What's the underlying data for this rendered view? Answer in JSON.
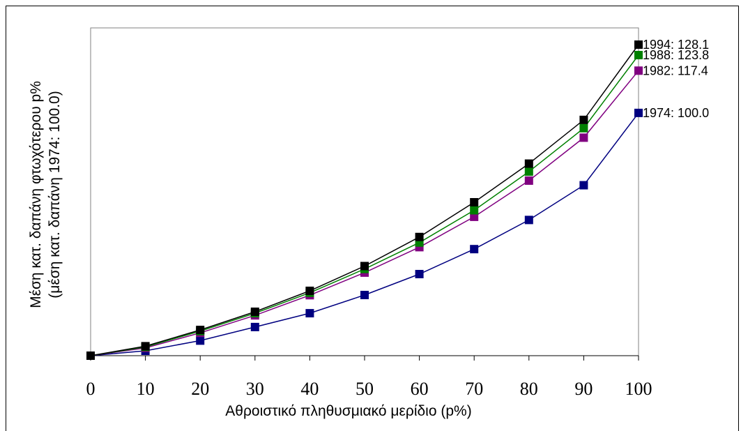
{
  "chart_data": {
    "type": "line",
    "title": "",
    "xlabel": "Αθροιστικό πληθυσμιακό μερίδιο (p%)",
    "ylabel_line1": "Μέση κατ. δαπάνη φτωχότερου p%",
    "ylabel_line2": "(μέση κατ. δαπάνη 1974: 100.0)",
    "x": [
      0,
      10,
      20,
      30,
      40,
      50,
      60,
      70,
      80,
      90,
      100
    ],
    "x_tick_labels": [
      "0",
      "10",
      "20",
      "30",
      "40",
      "50",
      "60",
      "70",
      "80",
      "90",
      "100"
    ],
    "ylim": [
      0,
      135
    ],
    "grid": false,
    "legend": "end-of-line labels",
    "series": [
      {
        "name": "1974",
        "end_label": "1974: 100.0",
        "color": "#000080",
        "values": [
          0,
          2.0,
          6.2,
          11.8,
          17.5,
          25.0,
          33.6,
          43.9,
          55.9,
          70.2,
          100.0
        ]
      },
      {
        "name": "1982",
        "end_label": "1982: 117.4",
        "color": "#800080",
        "values": [
          0,
          3.2,
          9.4,
          16.6,
          24.9,
          34.2,
          44.7,
          57.2,
          72.1,
          89.8,
          117.4
        ]
      },
      {
        "name": "1988",
        "end_label": "1988: 123.8",
        "color": "#008000",
        "values": [
          0,
          3.6,
          10.1,
          17.5,
          25.9,
          35.7,
          46.6,
          59.9,
          75.8,
          93.7,
          123.8
        ]
      },
      {
        "name": "1994",
        "end_label": "1994: 128.1",
        "color": "#000000",
        "values": [
          0,
          3.9,
          10.6,
          18.1,
          26.7,
          36.9,
          48.9,
          63.2,
          79.1,
          97.1,
          128.1
        ]
      }
    ]
  }
}
